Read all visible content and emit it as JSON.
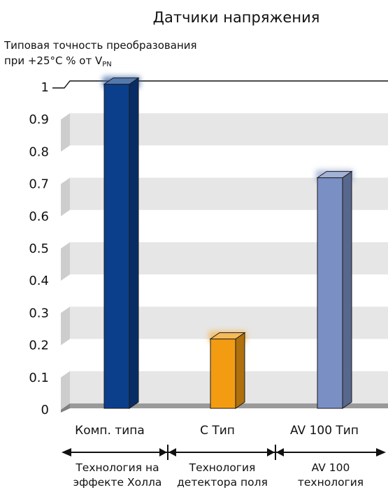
{
  "chart_data": {
    "type": "bar",
    "title": "Датчики напряжения",
    "ylabel_lines": [
      "Типовая точность преобразования",
      "при +25°C % от V"
    ],
    "ylabel_subscript": "PN",
    "ylim": [
      0,
      1
    ],
    "yticks": [
      "0",
      "0.1",
      "0.2",
      "0.3",
      "0.4",
      "0.5",
      "0.6",
      "0.7",
      "0.8",
      "0.9",
      "1"
    ],
    "categories": [
      "Комп. типа",
      "C Тип",
      "AV 100 Тип"
    ],
    "values": [
      0.99,
      0.2,
      0.7
    ],
    "bar_colors": [
      "#0b3f8c",
      "#f39c12",
      "#7a8fc4"
    ],
    "groups": [
      {
        "lines": [
          "Технология на",
          "эффекте Холла"
        ]
      },
      {
        "lines": [
          "Технология",
          "детектора поля"
        ]
      },
      {
        "lines": [
          "AV 100",
          "технология"
        ]
      }
    ],
    "grid": "alternating bands",
    "legend": "none"
  }
}
